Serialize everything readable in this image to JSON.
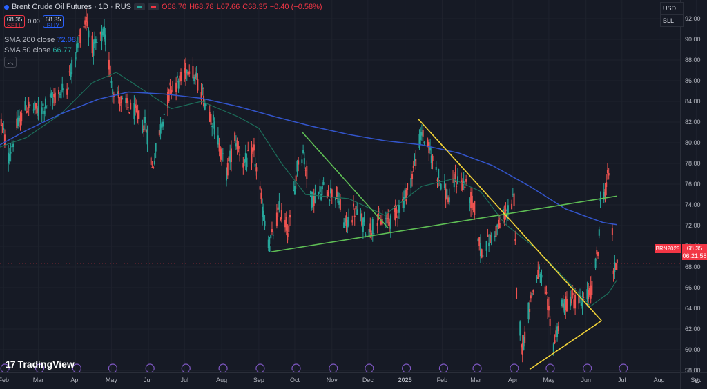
{
  "header": {
    "title": "Brent Crude Oil Futures · 1D · RUS",
    "open": "O68.70",
    "high": "H68.78",
    "low": "L67.66",
    "close": "C68.35",
    "change": "−0.40 (−0.58%)"
  },
  "trade": {
    "sell_price": "68.35",
    "sell_label": "SELL",
    "spread": "0.00",
    "buy_price": "68.35",
    "buy_label": "BUY"
  },
  "indicators": {
    "sma200_label": "SMA 200 close",
    "sma200_value": "72.08",
    "sma50_label": "SMA 50 close",
    "sma50_value": "66.77"
  },
  "currency": {
    "currency": "USD",
    "unit": "BLL"
  },
  "logo_text": "TradingView",
  "last_price": {
    "symbol": "BRN2025",
    "price": "68.35",
    "countdown": "06:21:58"
  },
  "colors": {
    "background": "#161a25",
    "up": "#26a69a",
    "down": "#ef5350",
    "sma200": "#3355cc",
    "sma50": "#1c6e5a",
    "trend_green": "#5fbf55",
    "trend_yellow": "#f2d338"
  },
  "chart_data": {
    "type": "candlestick",
    "title": "Brent Crude Oil Futures · 1D · RUS",
    "yaxis": {
      "ticks": [
        "58.00",
        "60.00",
        "62.00",
        "64.00",
        "66.00",
        "68.00",
        "70.00",
        "72.00",
        "74.00",
        "76.00",
        "78.00",
        "80.00",
        "82.00",
        "84.00",
        "86.00",
        "88.00",
        "90.00",
        "92.00"
      ],
      "range": [
        56.2,
        93.8
      ]
    },
    "xaxis": {
      "ticks": [
        "Feb",
        "Mar",
        "Apr",
        "May",
        "Jun",
        "Jul",
        "Aug",
        "Sep",
        "Oct",
        "Nov",
        "Dec",
        "2025",
        "Feb",
        "Mar",
        "Apr",
        "May",
        "Jun",
        "Jul",
        "Aug",
        "Sep"
      ],
      "range": [
        "2024-01-29",
        "2025-09-10"
      ]
    },
    "price_path": [
      [
        "2024-01-30",
        82.0
      ],
      [
        "2024-02-05",
        78.5
      ],
      [
        "2024-02-12",
        81.5
      ],
      [
        "2024-02-20",
        83.5
      ],
      [
        "2024-03-01",
        83.0
      ],
      [
        "2024-03-15",
        84.5
      ],
      [
        "2024-03-25",
        85.5
      ],
      [
        "2024-04-05",
        90.5
      ],
      [
        "2024-04-10",
        92.0
      ],
      [
        "2024-04-16",
        89.0
      ],
      [
        "2024-04-25",
        90.5
      ],
      [
        "2024-05-02",
        85.5
      ],
      [
        "2024-05-10",
        83.8
      ],
      [
        "2024-05-20",
        83.0
      ],
      [
        "2024-05-30",
        81.5
      ],
      [
        "2024-06-04",
        77.5
      ],
      [
        "2024-06-12",
        82.0
      ],
      [
        "2024-06-20",
        85.5
      ],
      [
        "2024-06-28",
        86.0
      ],
      [
        "2024-07-05",
        87.5
      ],
      [
        "2024-07-15",
        85.0
      ],
      [
        "2024-07-25",
        82.0
      ],
      [
        "2024-08-05",
        77.0
      ],
      [
        "2024-08-12",
        80.5
      ],
      [
        "2024-08-20",
        78.0
      ],
      [
        "2024-08-28",
        79.0
      ],
      [
        "2024-09-04",
        73.5
      ],
      [
        "2024-09-10",
        70.0
      ],
      [
        "2024-09-18",
        73.5
      ],
      [
        "2024-09-26",
        71.5
      ],
      [
        "2024-10-04",
        78.5
      ],
      [
        "2024-10-08",
        79.0
      ],
      [
        "2024-10-15",
        74.5
      ],
      [
        "2024-10-25",
        75.5
      ],
      [
        "2024-11-05",
        75.0
      ],
      [
        "2024-11-12",
        72.0
      ],
      [
        "2024-11-20",
        73.5
      ],
      [
        "2024-12-01",
        71.5
      ],
      [
        "2024-12-10",
        72.5
      ],
      [
        "2024-12-20",
        72.5
      ],
      [
        "2024-12-31",
        74.5
      ],
      [
        "2025-01-06",
        76.5
      ],
      [
        "2025-01-15",
        81.0
      ],
      [
        "2025-01-22",
        79.0
      ],
      [
        "2025-01-30",
        76.5
      ],
      [
        "2025-02-07",
        74.5
      ],
      [
        "2025-02-12",
        76.5
      ],
      [
        "2025-02-20",
        76.0
      ],
      [
        "2025-02-28",
        73.5
      ],
      [
        "2025-03-05",
        69.5
      ],
      [
        "2025-03-12",
        70.5
      ],
      [
        "2025-03-20",
        72.0
      ],
      [
        "2025-03-28",
        73.5
      ],
      [
        "2025-04-02",
        74.5
      ],
      [
        "2025-04-04",
        65.5
      ],
      [
        "2025-04-09",
        60.0
      ],
      [
        "2025-04-15",
        64.5
      ],
      [
        "2025-04-22",
        67.5
      ],
      [
        "2025-04-28",
        65.5
      ],
      [
        "2025-05-05",
        60.5
      ],
      [
        "2025-05-12",
        64.0
      ],
      [
        "2025-05-20",
        65.0
      ],
      [
        "2025-05-28",
        64.5
      ],
      [
        "2025-06-05",
        65.5
      ],
      [
        "2025-06-11",
        69.5
      ],
      [
        "2025-06-13",
        74.0
      ],
      [
        "2025-06-18",
        76.0
      ],
      [
        "2025-06-20",
        77.0
      ],
      [
        "2025-06-23",
        71.5
      ],
      [
        "2025-06-24",
        67.5
      ],
      [
        "2025-06-26",
        68.0
      ],
      [
        "2025-06-27",
        68.35
      ]
    ],
    "sma200_path": [
      [
        "2024-01-29",
        79.8
      ],
      [
        "2024-02-20",
        81.2
      ],
      [
        "2024-03-20",
        82.8
      ],
      [
        "2024-04-20",
        84.2
      ],
      [
        "2024-05-15",
        84.9
      ],
      [
        "2024-06-15",
        84.7
      ],
      [
        "2024-07-15",
        84.3
      ],
      [
        "2024-08-15",
        83.5
      ],
      [
        "2024-09-15",
        82.5
      ],
      [
        "2024-10-15",
        81.6
      ],
      [
        "2024-11-15",
        80.8
      ],
      [
        "2024-12-15",
        80.2
      ],
      [
        "2025-01-15",
        79.8
      ],
      [
        "2025-02-15",
        79.0
      ],
      [
        "2025-03-15",
        77.8
      ],
      [
        "2025-04-15",
        75.8
      ],
      [
        "2025-05-15",
        73.6
      ],
      [
        "2025-06-15",
        72.3
      ],
      [
        "2025-06-27",
        72.08
      ]
    ],
    "sma50_path": [
      [
        "2024-01-29",
        79.6
      ],
      [
        "2024-02-20",
        80.5
      ],
      [
        "2024-03-20",
        82.8
      ],
      [
        "2024-04-15",
        85.8
      ],
      [
        "2024-05-05",
        86.8
      ],
      [
        "2024-05-25",
        85.3
      ],
      [
        "2024-06-20",
        83.3
      ],
      [
        "2024-07-15",
        84.0
      ],
      [
        "2024-08-15",
        82.5
      ],
      [
        "2024-09-01",
        81.4
      ],
      [
        "2024-09-20",
        78.0
      ],
      [
        "2024-10-10",
        75.0
      ],
      [
        "2024-11-15",
        74.6
      ],
      [
        "2024-12-15",
        73.0
      ],
      [
        "2025-01-15",
        75.8
      ],
      [
        "2025-02-10",
        76.5
      ],
      [
        "2025-03-05",
        75.3
      ],
      [
        "2025-03-25",
        72.2
      ],
      [
        "2025-04-20",
        69.8
      ],
      [
        "2025-05-15",
        66.8
      ],
      [
        "2025-06-05",
        64.2
      ],
      [
        "2025-06-20",
        65.5
      ],
      [
        "2025-06-27",
        66.77
      ]
    ],
    "trendlines": [
      {
        "color": "green",
        "from": [
          "2024-09-11",
          69.45
        ],
        "to": [
          "2025-06-27",
          74.85
        ]
      },
      {
        "color": "green",
        "from": [
          "2024-10-07",
          81.05
        ],
        "to": [
          "2024-12-18",
          71.75
        ]
      },
      {
        "color": "yellow",
        "from": [
          "2025-01-12",
          82.3
        ],
        "to": [
          "2025-06-14",
          62.8
        ]
      },
      {
        "color": "yellow",
        "from": [
          "2025-04-15",
          58.1
        ],
        "to": [
          "2025-06-14",
          62.8
        ]
      }
    ],
    "last_price": 68.35
  }
}
